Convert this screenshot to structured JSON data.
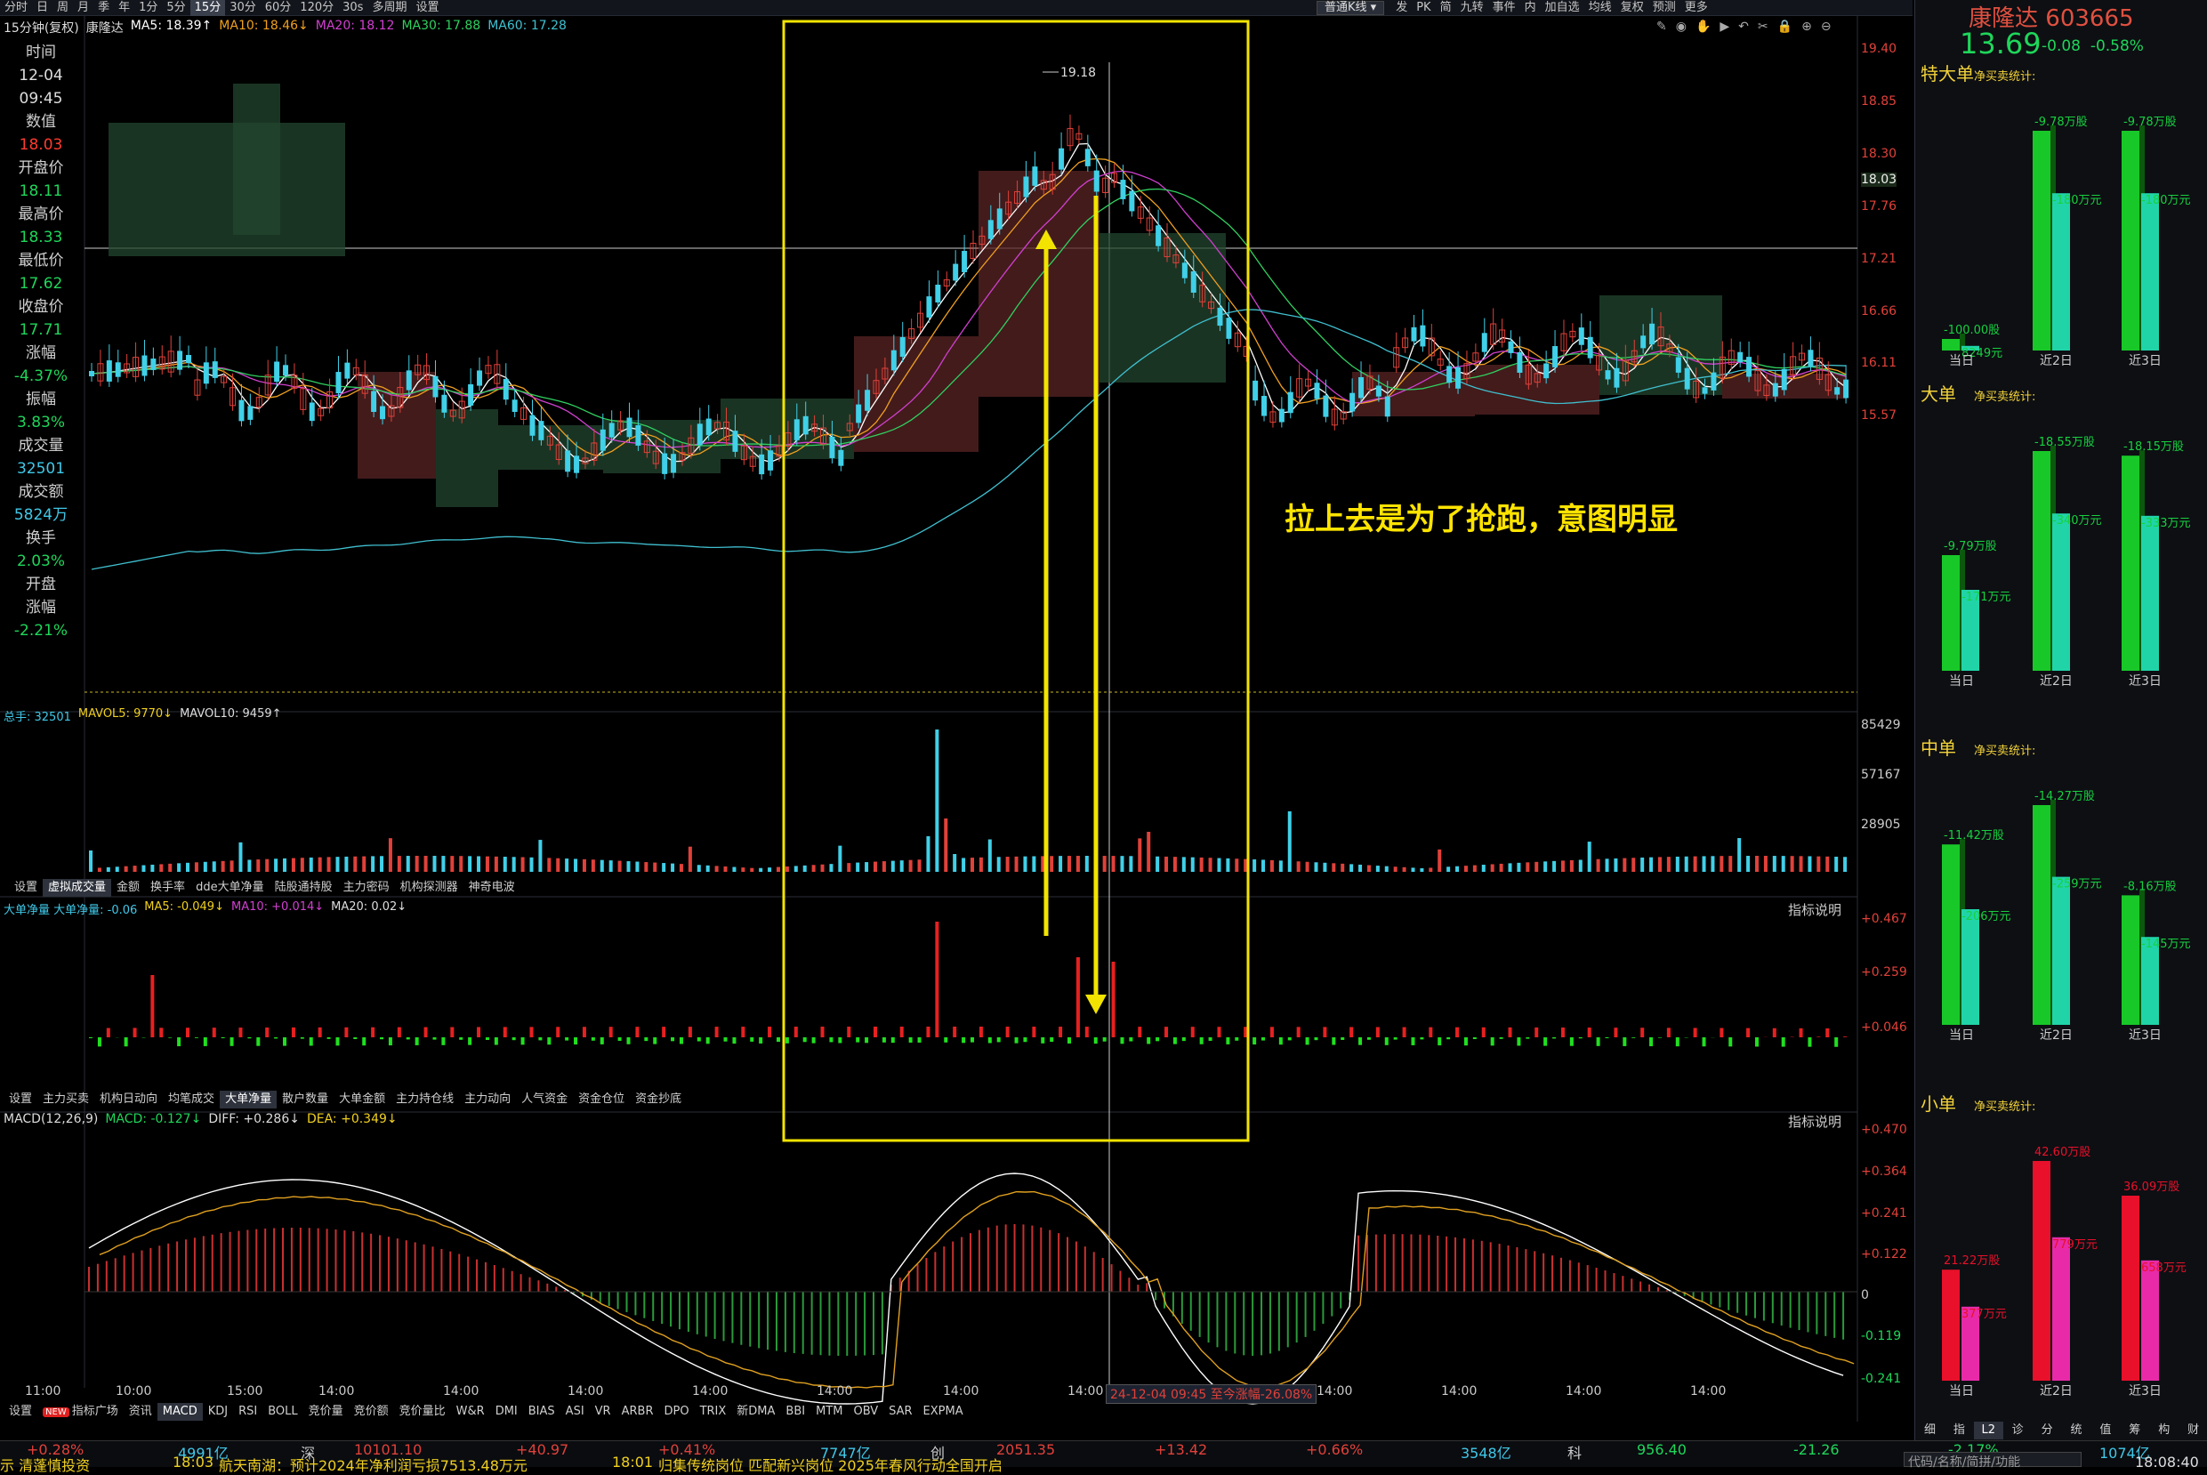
{
  "toolbar": {
    "items": [
      "分时",
      "日",
      "周",
      "月",
      "季",
      "年",
      "1分",
      "5分",
      "15分",
      "30分",
      "60分",
      "120分",
      "30s",
      "多周期",
      "设置"
    ],
    "active": "15分",
    "kline_type": "普通K线",
    "right_items": [
      "发",
      "PK",
      "简",
      "九转",
      "事件",
      "内",
      "加自选",
      "均线",
      "复权",
      "预测",
      "更多"
    ]
  },
  "chart_header": {
    "period": "15分钟(复权)",
    "stock": "康隆达",
    "ma5": "MA5: 18.39↑",
    "ma10": "MA10: 18.46↓",
    "ma20": "MA20: 18.12",
    "ma30": "MA30: 17.88",
    "ma60": "MA60: 17.28",
    "colors": {
      "ma5": "#ffffff",
      "ma10": "#f0a020",
      "ma20": "#d040d0",
      "ma30": "#30d060",
      "ma60": "#40c0d0"
    }
  },
  "info": {
    "time_label": "时间",
    "date": "12-04",
    "time": "09:45",
    "value_label": "数值",
    "value": "18.03",
    "open_label": "开盘价",
    "open": "18.11",
    "high_label": "最高价",
    "high": "18.33",
    "low_label": "最低价",
    "low": "17.62",
    "close_label": "收盘价",
    "close": "17.71",
    "chg_label": "涨幅",
    "chg": "-4.37%",
    "amp_label": "振幅",
    "amp": "3.83%",
    "vol_label": "成交量",
    "vol": "32501",
    "amt_label": "成交额",
    "amt": "5824万",
    "turn_label": "换手",
    "turn": "2.03%",
    "oa_label1": "开盘",
    "oa_label2": "涨幅",
    "oa": "-2.21%"
  },
  "price_axis": [
    "19.40",
    "18.85",
    "18.30",
    "18.03",
    "17.76",
    "17.21",
    "16.66",
    "16.11",
    "15.57"
  ],
  "high_marker": "19.18",
  "annotation": "拉上去是为了抢跑，意图明显",
  "volume_panel": {
    "header_total": "总手: 32501",
    "mavol5": "MAVOL5: 9770↓",
    "mavol10": "MAVOL10: 9459↑",
    "axis": [
      "85429",
      "57167",
      "28905"
    ]
  },
  "volume_tabs": [
    "设置",
    "虚拟成交量",
    "金额",
    "换手率",
    "dde大单净量",
    "陆股通持股",
    "主力密码",
    "机构探测器",
    "神奇电波"
  ],
  "volume_tab_active": "虚拟成交量",
  "net_panel": {
    "header": "大单净量 大单净量: -0.06",
    "ma5": "MA5: -0.049↓",
    "ma10": "MA10: +0.014↓",
    "ma20": "MA20: 0.02↓",
    "help": "指标说明",
    "axis": [
      "+0.467",
      "+0.259",
      "+0.046"
    ]
  },
  "net_tabs": [
    "设置",
    "主力买卖",
    "机构日动向",
    "均笔成交",
    "大单净量",
    "散户数量",
    "大单金额",
    "主力持仓线",
    "主力动向",
    "人气资金",
    "资金仓位",
    "资金抄底"
  ],
  "net_tab_active": "大单净量",
  "macd_panel": {
    "header": "MACD(12,26,9)",
    "macd": "MACD: -0.127↓",
    "diff": "DIFF: +0.286↓",
    "dea": "DEA: +0.349↓",
    "help": "指标说明",
    "axis": [
      "+0.470",
      "+0.364",
      "+0.241",
      "+0.122",
      "0",
      "-0.119",
      "-0.241"
    ]
  },
  "time_axis": [
    "11:00",
    "10:00",
    "15:00",
    "14:00",
    "14:00",
    "14:00",
    "14:00",
    "14:00",
    "14:00",
    "14:00",
    "14:00",
    "14:00",
    "14:00",
    "14:00",
    "14:00"
  ],
  "cursor_tip": "24-12-04 09:45 至今涨幅-26.08%",
  "macd_tabs": [
    "设置",
    "指标广场",
    "资讯",
    "MACD",
    "KDJ",
    "RSI",
    "BOLL",
    "竞价量",
    "竞价额",
    "竞价量比",
    "W&R",
    "DMI",
    "BIAS",
    "ASI",
    "VR",
    "ARBR",
    "DPO",
    "TRIX",
    "新DMA",
    "BBI",
    "MTM",
    "OBV",
    "SAR",
    "EXPMA"
  ],
  "macd_tab_active": "MACD",
  "new_badge": "NEW",
  "side": {
    "name": "康隆达",
    "code": "603665",
    "price": "13.69",
    "chg": "-0.08",
    "pct": "-0.58%",
    "sub": "净买卖统计:",
    "sections": [
      {
        "title": "特大单",
        "labels": [
          "当日",
          "近2日",
          "近3日"
        ],
        "shares": [
          "-100.00股",
          "-9.78万股",
          "-9.78万股"
        ],
        "amount": [
          "8249元",
          "-180万元",
          "-180万元"
        ],
        "values_share": [
          0.05,
          0.95,
          0.95
        ],
        "values_amt": [
          0.02,
          0.68,
          0.68
        ],
        "sign": "neg"
      },
      {
        "title": "大单",
        "labels": [
          "当日",
          "近2日",
          "近3日"
        ],
        "shares": [
          "-9.79万股",
          "-18.55万股",
          "-18.15万股"
        ],
        "amount": [
          "-171万元",
          "-340万元",
          "-333万元"
        ],
        "values_share": [
          0.5,
          0.95,
          0.93
        ],
        "values_amt": [
          0.35,
          0.68,
          0.67
        ],
        "sign": "neg"
      },
      {
        "title": "中单",
        "labels": [
          "当日",
          "近2日",
          "近3日"
        ],
        "shares": [
          "-11.42万股",
          "-14.27万股",
          "-8.16万股"
        ],
        "amount": [
          "-206万元",
          "-259万元",
          "-145万元"
        ],
        "values_share": [
          0.78,
          0.95,
          0.56
        ],
        "values_amt": [
          0.5,
          0.64,
          0.38
        ],
        "sign": "neg"
      },
      {
        "title": "小单",
        "labels": [
          "当日",
          "近2日",
          "近3日"
        ],
        "shares": [
          "21.22万股",
          "42.60万股",
          "36.09万股"
        ],
        "amount": [
          "377万元",
          "779万元",
          "658万元"
        ],
        "values_share": [
          0.48,
          0.95,
          0.8
        ],
        "values_amt": [
          0.32,
          0.62,
          0.52
        ],
        "sign": "pos"
      }
    ],
    "bottom_tabs": [
      "细",
      "指",
      "L2",
      "诊",
      "分",
      "统",
      "值",
      "筹",
      "构",
      "财"
    ],
    "bottom_active": "L2"
  },
  "status": {
    "idx1_chg": "+0.28%",
    "idx1_amt": "4991亿",
    "sz_label": "深",
    "sz_val": "10101.10",
    "sz_chg": "+40.97",
    "sz_pct": "+0.41%",
    "sz_amt": "7747亿",
    "cy_label": "创",
    "cy_val": "2051.35",
    "cy_chg": "+13.42",
    "cy_pct": "+0.66%",
    "cy_amt": "3548亿",
    "kc_label": "科",
    "kc_val": "956.40",
    "kc_chg": "-21.26",
    "kc_pct": "-2.17%",
    "kc_amt": "1074亿",
    "ticker_row": "示 清蓬慎投资",
    "news1_time": "18:03",
    "news1": "航天南湖：预计2024年净利润亏损7513.48万元",
    "news2_time": "18:01",
    "news2": "归集传统岗位 匹配新兴岗位 2025年春风行动全国开启",
    "search_hint": "代码/名称/简拼/功能",
    "clock": "18:08:40"
  }
}
